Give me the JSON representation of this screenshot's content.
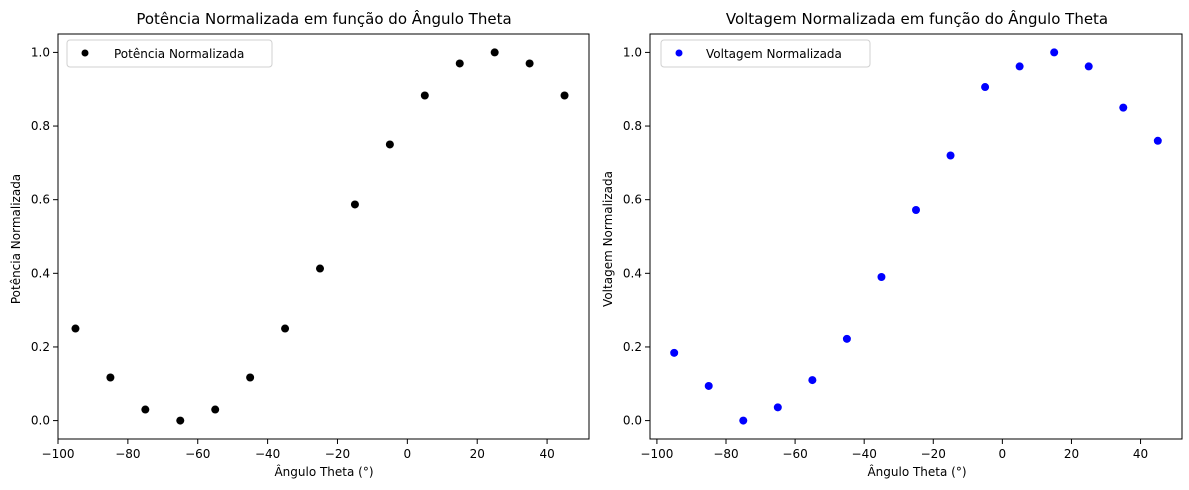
{
  "chart_data": [
    {
      "type": "scatter",
      "title": "Potência Normalizada em função do Ângulo Theta",
      "xlabel": "Ângulo Theta (°)",
      "ylabel": "Potência Normalizada",
      "xlim": [
        -100,
        52
      ],
      "ylim": [
        -0.05,
        1.05
      ],
      "xticks": [
        -100,
        -80,
        -60,
        -40,
        -20,
        0,
        20,
        40
      ],
      "xtick_labels": [
        "−100",
        "−80",
        "−60",
        "−40",
        "−20",
        "0",
        "20",
        "40"
      ],
      "yticks": [
        0.0,
        0.2,
        0.4,
        0.6,
        0.8,
        1.0
      ],
      "ytick_labels": [
        "0.0",
        "0.2",
        "0.4",
        "0.6",
        "0.8",
        "1.0"
      ],
      "grid": false,
      "legend_position": "top-left",
      "series": [
        {
          "name": "Potência Normalizada",
          "color": "#000000",
          "x": [
            -95,
            -85,
            -75,
            -65,
            -55,
            -45,
            -35,
            -25,
            -15,
            -5,
            5,
            15,
            25,
            35,
            45
          ],
          "y": [
            0.25,
            0.117,
            0.03,
            0.0,
            0.03,
            0.117,
            0.25,
            0.413,
            0.587,
            0.75,
            0.883,
            0.97,
            1.0,
            0.97,
            0.883
          ]
        }
      ]
    },
    {
      "type": "scatter",
      "title": "Voltagem Normalizada em função do Ângulo Theta",
      "xlabel": "Ângulo Theta (°)",
      "ylabel": "Voltagem Normalizada",
      "xlim": [
        -102,
        52
      ],
      "ylim": [
        -0.05,
        1.05
      ],
      "xticks": [
        -100,
        -80,
        -60,
        -40,
        -20,
        0,
        20,
        40
      ],
      "xtick_labels": [
        "−100",
        "−80",
        "−60",
        "−40",
        "−20",
        "0",
        "20",
        "40"
      ],
      "yticks": [
        0.0,
        0.2,
        0.4,
        0.6,
        0.8,
        1.0
      ],
      "ytick_labels": [
        "0.0",
        "0.2",
        "0.4",
        "0.6",
        "0.8",
        "1.0"
      ],
      "grid": false,
      "legend_position": "top-left",
      "series": [
        {
          "name": "Voltagem Normalizada",
          "color": "#0000ff",
          "x": [
            -95,
            -85,
            -75,
            -65,
            -55,
            -45,
            -35,
            -25,
            -15,
            -5,
            5,
            15,
            25,
            35,
            45
          ],
          "y": [
            0.184,
            0.094,
            0.0,
            0.036,
            0.11,
            0.222,
            0.39,
            0.572,
            0.72,
            0.906,
            0.962,
            1.0,
            0.962,
            0.85,
            0.76
          ]
        }
      ]
    }
  ]
}
